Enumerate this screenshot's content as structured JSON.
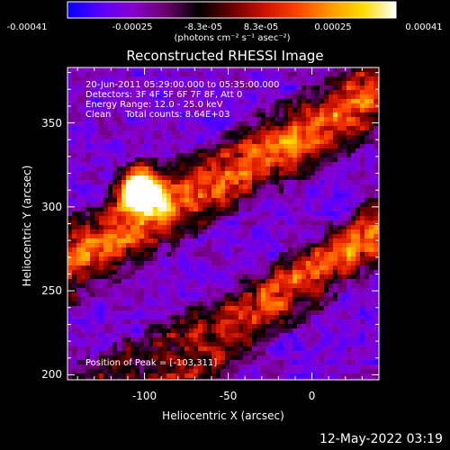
{
  "colorbar": {
    "ticks": [
      "-0.00041",
      "-0.00025",
      "-8.3e-05",
      "8.3e-05",
      "0.00025",
      "0.00041"
    ],
    "unit_label": "(photons cm⁻² s⁻¹ asec⁻²)",
    "range": [
      -0.00041,
      0.00041
    ],
    "colors": [
      "#0000ff",
      "#5a00ff",
      "#8800cc",
      "#6a006a",
      "#000000",
      "#6a0000",
      "#cc1100",
      "#ff4400",
      "#ff9900",
      "#ffdd00",
      "#ffffff"
    ]
  },
  "header": {
    "line1": "20-Jun-2011 05:29:00.000 to 05:35:00.000",
    "line2": "Detectors: 3F 4F 5F 6F 7F 8F, Att 0",
    "line3": "Energy Range: 12.0 - 25.0 keV",
    "line4": "Clean     Total counts: 8.64E+03"
  },
  "peak_label": "Position of Peak = [-103,311]",
  "footer": "12-May-2022 03:19",
  "chart_data": {
    "type": "heatmap",
    "title": "Reconstructed RHESSI Image",
    "xlabel": "Heliocentric X (arcsec)",
    "ylabel": "Heliocentric Y (arcsec)",
    "xlim": [
      -146,
      40
    ],
    "ylim": [
      197,
      383
    ],
    "x_ticks": [
      -100,
      -50,
      0
    ],
    "y_ticks": [
      200,
      250,
      300,
      350
    ],
    "peak": {
      "x": -103,
      "y": 311
    },
    "value_range": [
      -0.00041,
      0.00041
    ]
  }
}
